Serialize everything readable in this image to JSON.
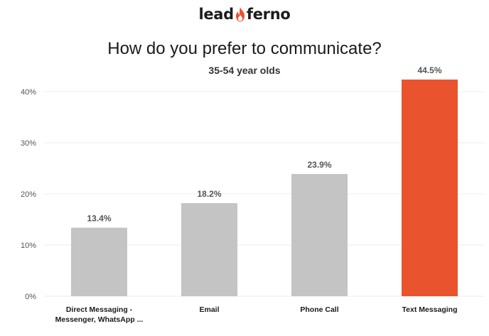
{
  "brand": {
    "name_left": "lead",
    "name_right": "ferno",
    "logo_icon": "flame-icon",
    "flame_color": "#e9542f"
  },
  "chart_data": {
    "type": "bar",
    "title": "How do you prefer to communicate?",
    "subtitle": "35-54 year olds",
    "categories": [
      [
        "Direct Messaging -",
        "Messenger, WhatsApp ..."
      ],
      [
        "Email"
      ],
      [
        "Phone Call"
      ],
      [
        "Text Messaging"
      ]
    ],
    "values": [
      13.4,
      18.2,
      23.9,
      44.5
    ],
    "value_labels": [
      "13.4%",
      "18.2%",
      "23.9%",
      "44.5%"
    ],
    "yticks": [
      0,
      10,
      20,
      30,
      40
    ],
    "ytick_labels": [
      "0%",
      "10%",
      "20%",
      "30%",
      "40%"
    ],
    "ylim": [
      0,
      40
    ],
    "xlabel": "",
    "ylabel": "",
    "grid": true,
    "colors": [
      "#c4c4c4",
      "#c4c4c4",
      "#c4c4c4",
      "#e9542f"
    ],
    "grid_color": "#eeeeee"
  }
}
